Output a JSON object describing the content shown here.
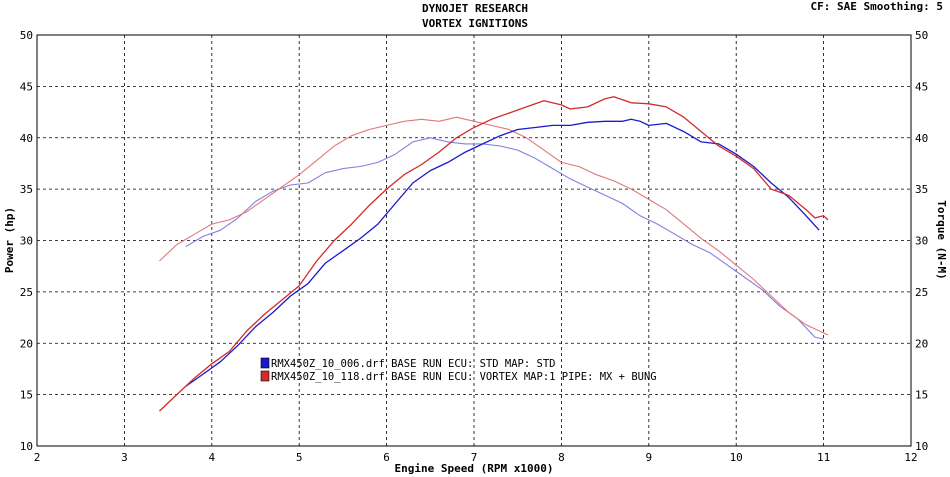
{
  "chart_data": {
    "type": "line",
    "title": "DYNOJET RESEARCH",
    "subtitle": "VORTEX IGNITIONS",
    "header_right": "CF: SAE  Smoothing: 5",
    "xlabel": "Engine Speed (RPM x1000)",
    "ylabel_left": "Power (hp)",
    "ylabel_right": "Torque (N-M)",
    "xlim": [
      2,
      12
    ],
    "ylim_left": [
      10,
      50
    ],
    "ylim_right": [
      10,
      50
    ],
    "x_ticks": [
      "2",
      "3",
      "4",
      "5",
      "6",
      "7",
      "8",
      "9",
      "10",
      "11",
      "12"
    ],
    "y_ticks_left": [
      "10",
      "15",
      "20",
      "25",
      "30",
      "35",
      "40",
      "45",
      "50"
    ],
    "y_ticks_right": [
      "10",
      "15",
      "20",
      "25",
      "30",
      "35",
      "40",
      "45",
      "50"
    ],
    "grid": true,
    "legend": [
      {
        "label": "RMX450Z_10_006.drf BASE RUN ECU: STD MAP: STD",
        "color": "#1a1acc"
      },
      {
        "label": "RMX450Z_10_118.drf BASE RUN ECU: VORTEX MAP:1 PIPE: MX + BUNG",
        "color": "#d42a2a"
      }
    ],
    "series": [
      {
        "run": 0,
        "measure": "power",
        "color": "#1a1acc",
        "points": [
          [
            3.7,
            15.8
          ],
          [
            3.9,
            17.0
          ],
          [
            4.1,
            18.2
          ],
          [
            4.3,
            19.8
          ],
          [
            4.5,
            21.6
          ],
          [
            4.7,
            23.0
          ],
          [
            4.9,
            24.6
          ],
          [
            5.1,
            25.8
          ],
          [
            5.3,
            27.8
          ],
          [
            5.5,
            29.0
          ],
          [
            5.7,
            30.2
          ],
          [
            5.9,
            31.6
          ],
          [
            6.1,
            33.6
          ],
          [
            6.3,
            35.6
          ],
          [
            6.5,
            36.8
          ],
          [
            6.7,
            37.6
          ],
          [
            6.9,
            38.6
          ],
          [
            7.1,
            39.4
          ],
          [
            7.3,
            40.2
          ],
          [
            7.5,
            40.8
          ],
          [
            7.7,
            41.0
          ],
          [
            7.9,
            41.2
          ],
          [
            8.1,
            41.2
          ],
          [
            8.3,
            41.5
          ],
          [
            8.5,
            41.6
          ],
          [
            8.7,
            41.6
          ],
          [
            8.8,
            41.8
          ],
          [
            8.9,
            41.6
          ],
          [
            9.0,
            41.2
          ],
          [
            9.2,
            41.4
          ],
          [
            9.4,
            40.6
          ],
          [
            9.6,
            39.6
          ],
          [
            9.8,
            39.4
          ],
          [
            10.0,
            38.4
          ],
          [
            10.2,
            37.2
          ],
          [
            10.4,
            35.6
          ],
          [
            10.6,
            34.2
          ],
          [
            10.8,
            32.4
          ],
          [
            10.95,
            31.0
          ]
        ]
      },
      {
        "run": 1,
        "measure": "power",
        "color": "#d42a2a",
        "points": [
          [
            3.4,
            13.4
          ],
          [
            3.6,
            15.0
          ],
          [
            3.8,
            16.6
          ],
          [
            4.0,
            18.0
          ],
          [
            4.2,
            19.2
          ],
          [
            4.4,
            21.2
          ],
          [
            4.6,
            22.8
          ],
          [
            4.8,
            24.2
          ],
          [
            5.0,
            25.6
          ],
          [
            5.2,
            28.0
          ],
          [
            5.4,
            30.0
          ],
          [
            5.6,
            31.6
          ],
          [
            5.8,
            33.4
          ],
          [
            6.0,
            35.0
          ],
          [
            6.2,
            36.4
          ],
          [
            6.4,
            37.4
          ],
          [
            6.6,
            38.6
          ],
          [
            6.8,
            40.0
          ],
          [
            7.0,
            41.0
          ],
          [
            7.2,
            41.8
          ],
          [
            7.4,
            42.4
          ],
          [
            7.6,
            43.0
          ],
          [
            7.8,
            43.6
          ],
          [
            8.0,
            43.2
          ],
          [
            8.1,
            42.8
          ],
          [
            8.3,
            43.0
          ],
          [
            8.5,
            43.8
          ],
          [
            8.6,
            44.0
          ],
          [
            8.8,
            43.4
          ],
          [
            9.0,
            43.3
          ],
          [
            9.2,
            43.0
          ],
          [
            9.4,
            42.0
          ],
          [
            9.6,
            40.6
          ],
          [
            9.8,
            39.2
          ],
          [
            10.0,
            38.2
          ],
          [
            10.2,
            37.0
          ],
          [
            10.4,
            35.0
          ],
          [
            10.6,
            34.4
          ],
          [
            10.8,
            33.0
          ],
          [
            10.9,
            32.2
          ],
          [
            11.0,
            32.4
          ],
          [
            11.05,
            32.0
          ]
        ]
      },
      {
        "run": 0,
        "measure": "torque",
        "color": "#8080e0",
        "points": [
          [
            3.7,
            29.4
          ],
          [
            3.9,
            30.4
          ],
          [
            4.1,
            31.0
          ],
          [
            4.3,
            32.2
          ],
          [
            4.5,
            33.8
          ],
          [
            4.7,
            34.8
          ],
          [
            4.9,
            35.4
          ],
          [
            5.1,
            35.6
          ],
          [
            5.3,
            36.6
          ],
          [
            5.5,
            37.0
          ],
          [
            5.7,
            37.2
          ],
          [
            5.9,
            37.6
          ],
          [
            6.1,
            38.4
          ],
          [
            6.3,
            39.6
          ],
          [
            6.5,
            40.0
          ],
          [
            6.7,
            39.6
          ],
          [
            6.9,
            39.4
          ],
          [
            7.1,
            39.4
          ],
          [
            7.3,
            39.2
          ],
          [
            7.5,
            38.8
          ],
          [
            7.7,
            38.0
          ],
          [
            7.9,
            37.0
          ],
          [
            8.1,
            36.0
          ],
          [
            8.3,
            35.2
          ],
          [
            8.5,
            34.4
          ],
          [
            8.7,
            33.6
          ],
          [
            8.9,
            32.4
          ],
          [
            9.1,
            31.6
          ],
          [
            9.3,
            30.6
          ],
          [
            9.5,
            29.6
          ],
          [
            9.7,
            28.8
          ],
          [
            9.9,
            27.6
          ],
          [
            10.1,
            26.4
          ],
          [
            10.3,
            25.2
          ],
          [
            10.5,
            23.6
          ],
          [
            10.7,
            22.4
          ],
          [
            10.9,
            20.6
          ],
          [
            11.0,
            20.4
          ]
        ]
      },
      {
        "run": 1,
        "measure": "torque",
        "color": "#e07878",
        "points": [
          [
            3.4,
            28.0
          ],
          [
            3.6,
            29.6
          ],
          [
            3.8,
            30.6
          ],
          [
            4.0,
            31.6
          ],
          [
            4.2,
            32.0
          ],
          [
            4.4,
            32.8
          ],
          [
            4.6,
            34.0
          ],
          [
            4.8,
            35.2
          ],
          [
            5.0,
            36.4
          ],
          [
            5.2,
            37.8
          ],
          [
            5.4,
            39.2
          ],
          [
            5.6,
            40.2
          ],
          [
            5.8,
            40.8
          ],
          [
            6.0,
            41.2
          ],
          [
            6.2,
            41.6
          ],
          [
            6.4,
            41.8
          ],
          [
            6.6,
            41.6
          ],
          [
            6.8,
            42.0
          ],
          [
            7.0,
            41.6
          ],
          [
            7.2,
            41.2
          ],
          [
            7.4,
            40.8
          ],
          [
            7.6,
            40.0
          ],
          [
            7.8,
            38.8
          ],
          [
            8.0,
            37.6
          ],
          [
            8.2,
            37.2
          ],
          [
            8.4,
            36.4
          ],
          [
            8.6,
            35.8
          ],
          [
            8.8,
            35.0
          ],
          [
            9.0,
            34.0
          ],
          [
            9.2,
            33.0
          ],
          [
            9.4,
            31.6
          ],
          [
            9.6,
            30.2
          ],
          [
            9.8,
            29.0
          ],
          [
            10.0,
            27.6
          ],
          [
            10.2,
            26.2
          ],
          [
            10.4,
            24.6
          ],
          [
            10.6,
            23.0
          ],
          [
            10.8,
            21.8
          ],
          [
            11.0,
            21.0
          ],
          [
            11.05,
            20.8
          ]
        ]
      }
    ]
  }
}
